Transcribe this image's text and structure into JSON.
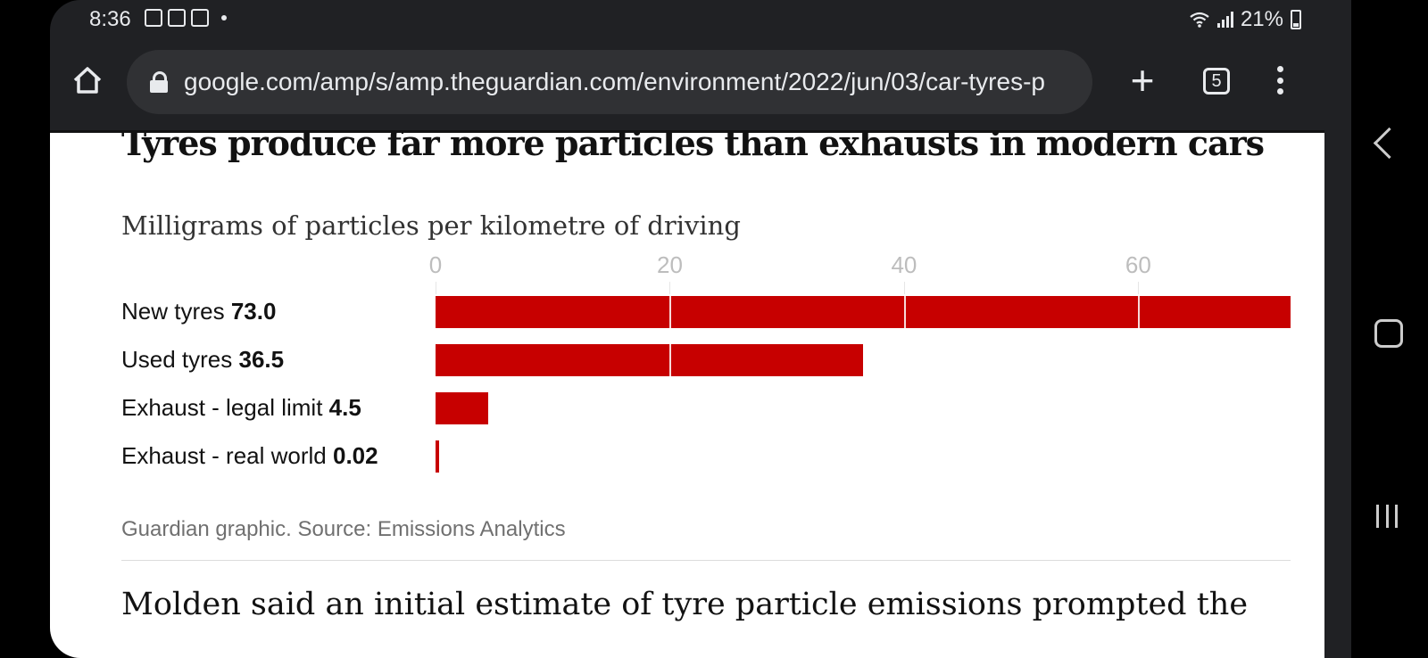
{
  "status_bar": {
    "time": "8:36",
    "battery": "21%",
    "icons_left": [
      "gallery-icon",
      "cast-icon",
      "voicemail-icon"
    ],
    "icons_right": [
      "wifi-icon",
      "signal-icon",
      "battery-icon"
    ]
  },
  "browser": {
    "url": "google.com/amp/s/amp.theguardian.com/environment/2022/jun/03/car-tyres-p",
    "tab_count": "5",
    "new_tab_symbol": "+"
  },
  "article": {
    "chart_title": "Tyres produce far more particles than exhausts in modern cars",
    "chart_subtitle": "Milligrams of particles per kilometre of driving",
    "source": "Guardian graphic. Source: Emissions Analytics",
    "body_text": "Molden said an initial estimate of tyre particle emissions prompted the"
  },
  "chart_data": {
    "type": "bar",
    "orientation": "horizontal",
    "categories": [
      "New tyres",
      "Used tyres",
      "Exhaust - legal limit",
      "Exhaust - real world"
    ],
    "value_labels": [
      "73.0",
      "36.5",
      "4.5",
      "0.02"
    ],
    "values": [
      73.0,
      36.5,
      4.5,
      0.02
    ],
    "x_ticks": [
      "0",
      "20",
      "40",
      "60"
    ],
    "xlim": [
      0,
      73
    ],
    "title": "Tyres produce far more particles than exhausts in modern cars",
    "subtitle": "Milligrams of particles per kilometre of driving",
    "bar_color": "#c70000",
    "grid": true
  },
  "colors": {
    "accent": "#c70000",
    "browser_chrome": "#202124",
    "url_field": "#303134"
  }
}
